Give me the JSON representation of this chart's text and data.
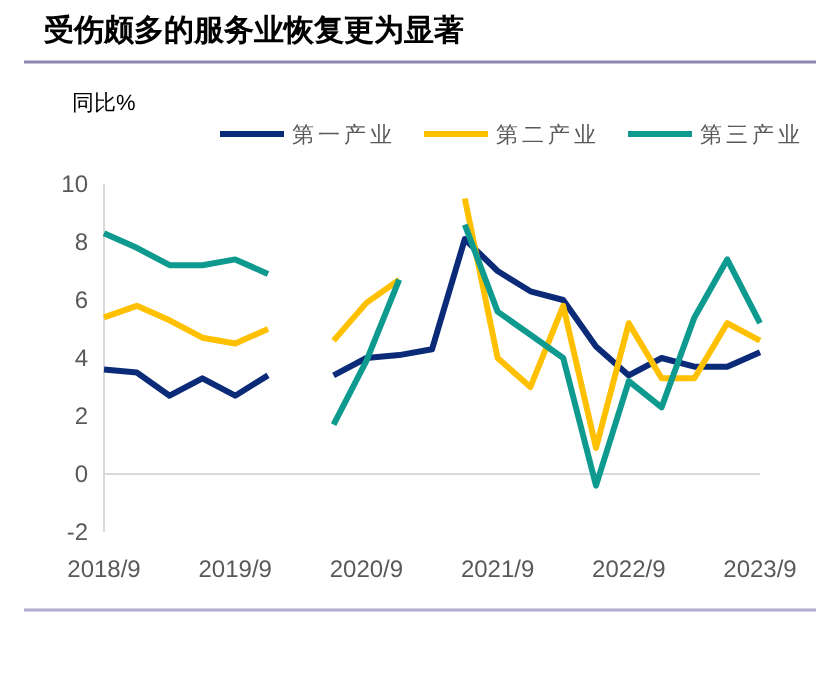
{
  "chart_data": {
    "type": "line",
    "title": "受伤颇多的服务业恢复更为显著",
    "ylabel": "同比%",
    "categories": [
      "2018/9",
      null,
      null,
      null,
      "2019/9",
      null,
      null,
      null,
      "2020/9",
      null,
      null,
      null,
      "2021/9",
      null,
      null,
      null,
      "2022/9",
      null,
      null,
      null,
      "2023/9"
    ],
    "series": [
      {
        "name": "第一产业",
        "color": "#0b2a78",
        "values": [
          3.6,
          3.5,
          2.7,
          3.3,
          2.7,
          3.4,
          null,
          3.4,
          4.0,
          4.1,
          4.3,
          8.1,
          7.0,
          6.3,
          6.0,
          4.4,
          3.4,
          4.0,
          3.7,
          3.7,
          4.2
        ]
      },
      {
        "name": "第二产业",
        "color": "#ffc000",
        "values": [
          5.4,
          5.8,
          5.3,
          4.7,
          4.5,
          5.0,
          null,
          4.6,
          5.9,
          6.7,
          null,
          9.5,
          4.0,
          3.0,
          5.8,
          0.9,
          5.2,
          3.3,
          3.3,
          5.2,
          4.6
        ]
      },
      {
        "name": "第三产业",
        "color": "#0e9a8f",
        "values": [
          8.3,
          7.8,
          7.2,
          7.2,
          7.4,
          6.9,
          null,
          1.7,
          3.9,
          6.7,
          null,
          8.6,
          5.6,
          4.8,
          4.0,
          -0.4,
          3.2,
          2.3,
          5.4,
          7.4,
          5.2
        ]
      }
    ],
    "ylim": [
      -2,
      10
    ],
    "yticks": [
      -2,
      0,
      2,
      4,
      6,
      8,
      10
    ],
    "legend": "top right",
    "line_style": "solid",
    "marker": "none"
  }
}
